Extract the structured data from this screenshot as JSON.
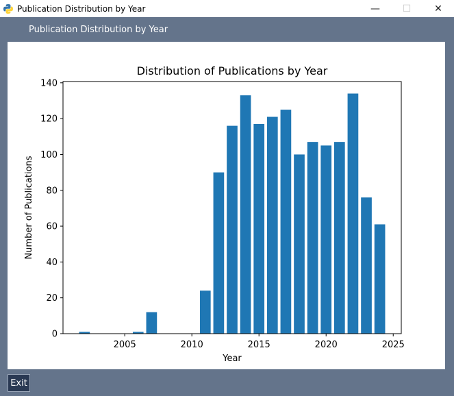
{
  "window": {
    "title": "Publication Distribution by Year",
    "minimize": "—",
    "maximize": "☐",
    "close": "✕"
  },
  "panel": {
    "label": "Publication Distribution by Year"
  },
  "footer": {
    "exit_label": "Exit"
  },
  "colors": {
    "bar": "#1f77b4",
    "background": "#64748b",
    "exit_button": "#2a3953"
  },
  "chart_data": {
    "type": "bar",
    "title": "Distribution of Publications by Year",
    "xlabel": "Year",
    "ylabel": "Number of Publications",
    "x": [
      2002,
      2006,
      2007,
      2011,
      2012,
      2013,
      2014,
      2015,
      2016,
      2017,
      2018,
      2019,
      2020,
      2021,
      2022,
      2023,
      2024
    ],
    "values": [
      1,
      1,
      12,
      24,
      90,
      116,
      133,
      117,
      121,
      125,
      100,
      107,
      105,
      107,
      134,
      76,
      61
    ],
    "xlim": [
      2000.4,
      2025.6
    ],
    "ylim": [
      0,
      140.7
    ],
    "xticks": [
      2005,
      2010,
      2015,
      2020,
      2025
    ],
    "yticks": [
      0,
      20,
      40,
      60,
      80,
      100,
      120,
      140
    ],
    "grid": false,
    "legend": "none"
  }
}
